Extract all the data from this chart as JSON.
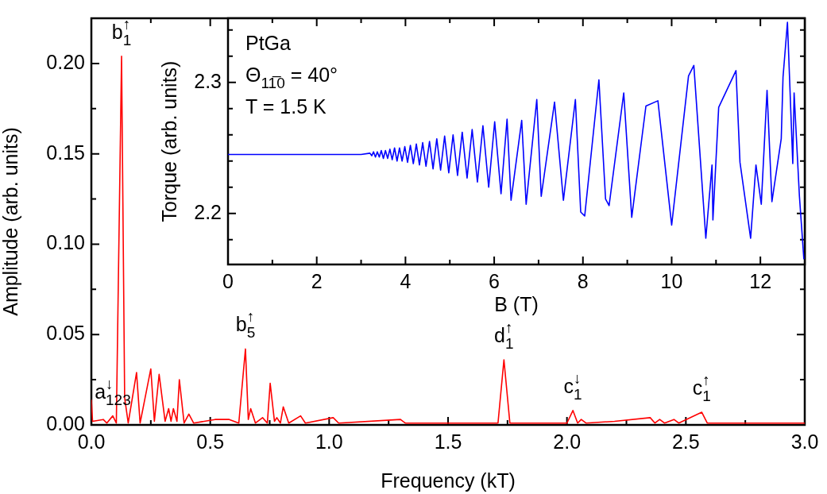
{
  "chart_data": [
    {
      "type": "line",
      "xlabel": "Frequency (kT)",
      "ylabel": "Amplitude (arb. units)",
      "xlim": [
        0,
        3
      ],
      "ylim": [
        0,
        0.225
      ],
      "xticks": [
        {
          "value": 0,
          "label": "0.0"
        },
        {
          "value": 0.25,
          "label": null
        },
        {
          "value": 0.5,
          "label": "0.5"
        },
        {
          "value": 0.75,
          "label": null
        },
        {
          "value": 1,
          "label": "1.0"
        },
        {
          "value": 1.25,
          "label": null
        },
        {
          "value": 1.5,
          "label": "1.5"
        },
        {
          "value": 1.75,
          "label": null
        },
        {
          "value": 2,
          "label": "2.0"
        },
        {
          "value": 2.25,
          "label": null
        },
        {
          "value": 2.5,
          "label": "2.5"
        },
        {
          "value": 2.75,
          "label": null
        },
        {
          "value": 3,
          "label": "3.0"
        }
      ],
      "yticks": [
        {
          "value": 0,
          "label": "0.00"
        },
        {
          "value": 0.025,
          "label": null
        },
        {
          "value": 0.05,
          "label": "0.05"
        },
        {
          "value": 0.075,
          "label": null
        },
        {
          "value": 0.1,
          "label": "0.10"
        },
        {
          "value": 0.125,
          "label": null
        },
        {
          "value": 0.15,
          "label": "0.15"
        },
        {
          "value": 0.175,
          "label": null
        },
        {
          "value": 0.2,
          "label": "0.20"
        }
      ],
      "series": [
        {
          "color": "#ff0000",
          "x": [
            0,
            0.005,
            0.05,
            0.065,
            0.09,
            0.105,
            0.127,
            0.14,
            0.155,
            0.19,
            0.205,
            0.25,
            0.265,
            0.285,
            0.31,
            0.325,
            0.335,
            0.345,
            0.36,
            0.37,
            0.39,
            0.41,
            0.43,
            0.52,
            0.58,
            0.62,
            0.648,
            0.66,
            0.67,
            0.69,
            0.72,
            0.74,
            0.752,
            0.77,
            0.78,
            0.795,
            0.807,
            0.83,
            0.88,
            0.9,
            1.017,
            1.04,
            1.3,
            1.32,
            1.6,
            1.71,
            1.735,
            1.76,
            2,
            2.025,
            2.045,
            2.06,
            2.08,
            2.2,
            2.35,
            2.37,
            2.39,
            2.41,
            2.45,
            2.47,
            2.567,
            2.59,
            3
          ],
          "values": [
            0.014,
            0.002,
            0.003,
            0.001,
            0.005,
            0.001,
            0.204,
            0.015,
            0.001,
            0.029,
            0.001,
            0.031,
            0.002,
            0.028,
            0.002,
            0.009,
            0.002,
            0.009,
            0.002,
            0.025,
            0.001,
            0.006,
            0.001,
            0.003,
            0.003,
            0.001,
            0.042,
            0.003,
            0.009,
            0.001,
            0.004,
            0.001,
            0.023,
            0.002,
            0.004,
            0.001,
            0.01,
            0.001,
            0.005,
            0.001,
            0.004,
            0.001,
            0.003,
            0.001,
            0.001,
            0.001,
            0.036,
            0.001,
            0.001,
            0.008,
            0.001,
            0.003,
            0.001,
            0.002,
            0.004,
            0.001,
            0.003,
            0.001,
            0.003,
            0.001,
            0.007,
            0.001,
            0.001
          ]
        }
      ],
      "annotations": [
        {
          "text": "b$_{1}$$^{↑}$",
          "x": 0.127,
          "y": 0.204
        },
        {
          "text": "a$_{123}$$^{↓}$",
          "x": 0.09,
          "y": 0.005
        },
        {
          "text": "b$_{5}$$^{↑}$",
          "x": 0.648,
          "y": 0.042
        },
        {
          "text": "d$_{1}$$^{↑}$",
          "x": 1.735,
          "y": 0.036
        },
        {
          "text": "c$_{1}$$^{↓}$",
          "x": 2.025,
          "y": 0.008
        },
        {
          "text": "c$_{1}$$^{↑}$",
          "x": 2.567,
          "y": 0.007
        }
      ]
    },
    {
      "type": "line",
      "xlabel": "B (T)",
      "ylabel": "Torque (arb. units)",
      "xlim": [
        0,
        13
      ],
      "ylim": [
        2.161,
        2.349
      ],
      "xticks": [
        0,
        {
          "value": 1,
          "label": null
        },
        2,
        {
          "value": 3,
          "label": null
        },
        4,
        {
          "value": 5,
          "label": null
        },
        6,
        {
          "value": 7,
          "label": null
        },
        8,
        {
          "value": 9,
          "label": null
        },
        10,
        {
          "value": 11,
          "label": null
        },
        12
      ],
      "yticks": [
        {
          "value": 2.18,
          "label": null
        },
        2.2,
        {
          "value": 2.22,
          "label": null
        },
        {
          "value": 2.24,
          "label": null
        },
        {
          "value": 2.26,
          "label": null
        },
        {
          "value": 2.28,
          "label": null
        },
        2.3,
        {
          "value": 2.32,
          "label": null
        },
        {
          "value": 2.34,
          "label": null
        }
      ],
      "series": [
        {
          "color": "#0000ff",
          "x": [
            0,
            2.5,
            3,
            3.2,
            3.24,
            3.281,
            3.323,
            3.366,
            3.41,
            3.455,
            3.502,
            3.549,
            3.599,
            3.649,
            3.701,
            3.754,
            3.81,
            3.866,
            3.924,
            3.985,
            4.047,
            4.111,
            4.177,
            4.245,
            4.315,
            4.388,
            4.463,
            4.542,
            4.622,
            4.706,
            4.792,
            4.883,
            4.976,
            5.073,
            5.174,
            5.279,
            5.389,
            5.503,
            5.622,
            5.746,
            5.876,
            6.011,
            6.154,
            6.29,
            6.38,
            6.62,
            6.72,
            6.96,
            7.06,
            7.36,
            7.56,
            7.83,
            7.95,
            8.04,
            8.36,
            8.51,
            8.59,
            8.92,
            9.1,
            9.42,
            9.69,
            10,
            10.38,
            10.5,
            10.77,
            10.91,
            10.93,
            11.06,
            11.45,
            11.54,
            11.78,
            11.9,
            12.02,
            12.15,
            12.26,
            12.47,
            12.51,
            12.61,
            12.73,
            12.76,
            12.88,
            12.98
          ],
          "values": [
            2.245,
            2.245,
            2.245,
            2.246,
            2.244,
            2.247,
            2.243,
            2.247,
            2.243,
            2.248,
            2.242,
            2.248,
            2.242,
            2.249,
            2.241,
            2.25,
            2.24,
            2.25,
            2.24,
            2.251,
            2.239,
            2.252,
            2.238,
            2.253,
            2.237,
            2.254,
            2.236,
            2.255,
            2.234,
            2.257,
            2.233,
            2.259,
            2.231,
            2.26,
            2.229,
            2.262,
            2.227,
            2.264,
            2.224,
            2.267,
            2.22,
            2.27,
            2.215,
            2.272,
            2.21,
            2.271,
            2.207,
            2.287,
            2.213,
            2.285,
            2.21,
            2.287,
            2.201,
            2.198,
            2.302,
            2.211,
            2.206,
            2.292,
            2.197,
            2.282,
            2.286,
            2.191,
            2.305,
            2.313,
            2.181,
            2.237,
            2.195,
            2.281,
            2.309,
            2.239,
            2.181,
            2.237,
            2.207,
            2.294,
            2.209,
            2.257,
            2.304,
            2.346,
            2.238,
            2.292,
            2.213,
            2.165
          ]
        }
      ],
      "annotations": [
        "PtGa",
        "Θ$_{11̅0}$ = 40°",
        "T = 1.5 K"
      ]
    }
  ]
}
